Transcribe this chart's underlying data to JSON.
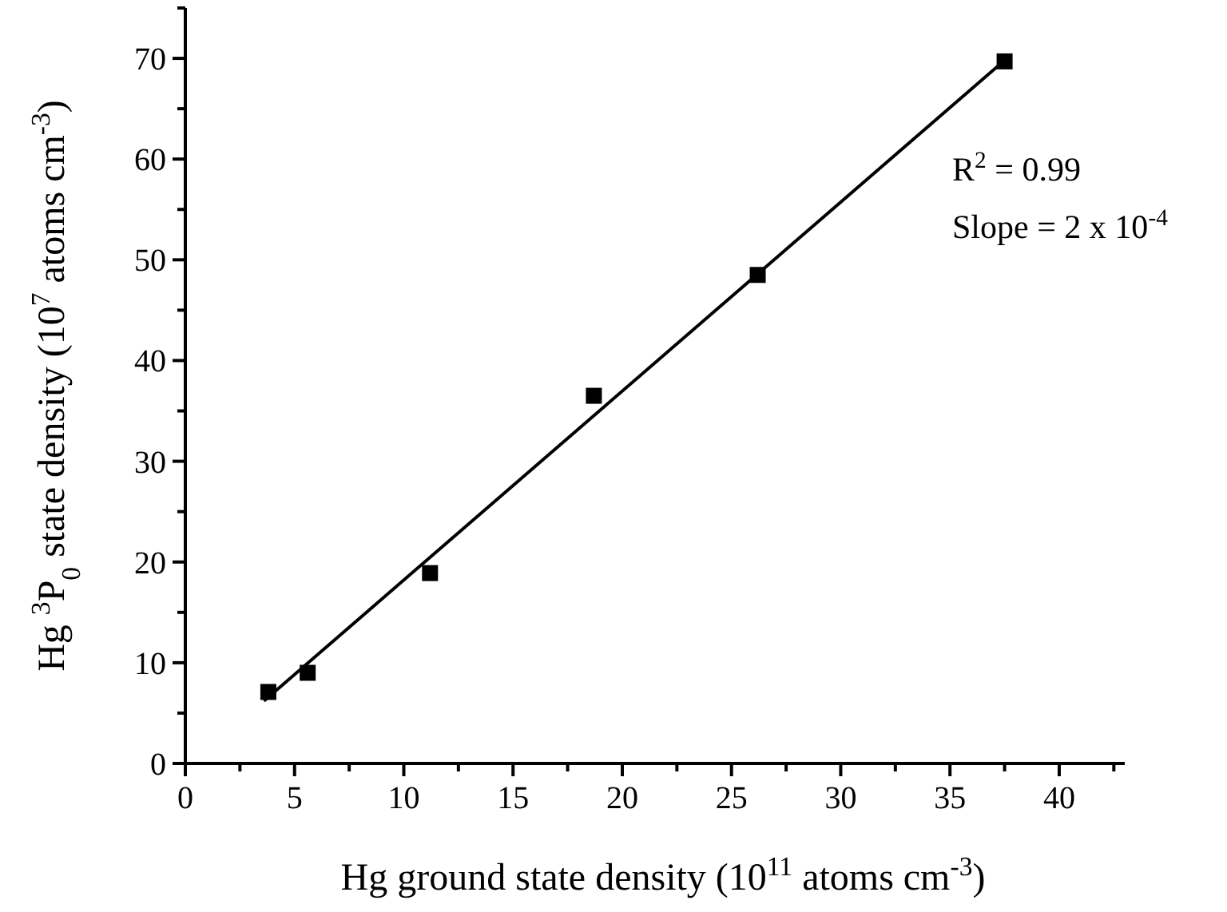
{
  "chart_data": {
    "type": "scatter",
    "xlabel": "Hg ground state density (10$^{11}$ atoms cm$^{-3}$)",
    "ylabel": "Hg $^{3}$P$_{0}$ state density (10$^{7}$ atoms cm$^{-3}$)",
    "xlim": [
      0,
      43
    ],
    "ylim": [
      0,
      75
    ],
    "xticks": [
      0,
      {
        "value": 2.5,
        "label": null
      },
      5,
      {
        "value": 7.5,
        "label": null
      },
      10,
      {
        "value": 12.5,
        "label": null
      },
      15,
      {
        "value": 17.5,
        "label": null
      },
      20,
      {
        "value": 22.5,
        "label": null
      },
      25,
      {
        "value": 27.5,
        "label": null
      },
      30,
      {
        "value": 32.5,
        "label": null
      },
      35,
      {
        "value": 37.5,
        "label": null
      },
      40,
      {
        "value": 42.5,
        "label": null
      }
    ],
    "yticks": [
      0,
      {
        "value": 5,
        "label": null
      },
      10,
      {
        "value": 15,
        "label": null
      },
      20,
      {
        "value": 25,
        "label": null
      },
      30,
      {
        "value": 35,
        "label": null
      },
      40,
      {
        "value": 45,
        "label": null
      },
      50,
      {
        "value": 55,
        "label": null
      },
      60,
      {
        "value": 65,
        "label": null
      },
      70,
      {
        "value": 75,
        "label": null
      }
    ],
    "grid": false,
    "series": [
      {
        "color": "#000000",
        "marker": "square",
        "x": [
          3.8,
          5.6,
          11.2,
          18.7,
          26.2,
          37.5
        ],
        "values": [
          7.1,
          9.0,
          18.9,
          36.5,
          48.5,
          69.7
        ]
      },
      {
        "type": "line",
        "color": "#000000",
        "marker": "none",
        "line_style": "solid",
        "x": [
          3.6,
          37.5
        ],
        "values": [
          6.2,
          69.8
        ]
      }
    ],
    "annotations": [
      "R$^{2}$ = 0.99",
      "Slope = 2 x 10$^{-4}$"
    ]
  }
}
